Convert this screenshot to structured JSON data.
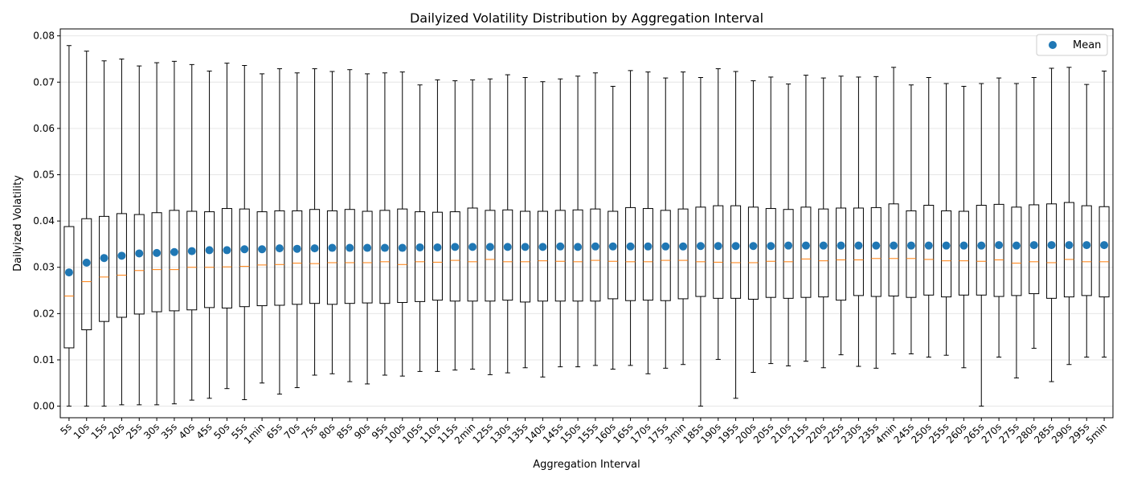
{
  "chart_data": {
    "type": "box",
    "title": "Dailyized Volatility Distribution by Aggregation Interval",
    "xlabel": "Aggregation Interval",
    "ylabel": "Dailyized Volatility",
    "ylim": [
      -0.0025,
      0.0815
    ],
    "yticks": [
      0.0,
      0.01,
      0.02,
      0.03,
      0.04,
      0.05,
      0.06,
      0.07,
      0.08
    ],
    "ytick_labels": [
      "0.00",
      "0.01",
      "0.02",
      "0.03",
      "0.04",
      "0.05",
      "0.06",
      "0.07",
      "0.08"
    ],
    "grid": "horizontal",
    "legend": {
      "placement": "top-right",
      "entries": [
        "Mean"
      ]
    },
    "colors": {
      "mean": "#1f77b4",
      "median": "#ff7f0e",
      "box": "#000000",
      "grid": "#e6e6e6"
    },
    "categories": [
      "5s",
      "10s",
      "15s",
      "20s",
      "25s",
      "30s",
      "35s",
      "40s",
      "45s",
      "50s",
      "55s",
      "1min",
      "65s",
      "70s",
      "75s",
      "80s",
      "85s",
      "90s",
      "95s",
      "100s",
      "105s",
      "110s",
      "115s",
      "2min",
      "125s",
      "130s",
      "135s",
      "140s",
      "145s",
      "150s",
      "155s",
      "160s",
      "165s",
      "170s",
      "175s",
      "3min",
      "185s",
      "190s",
      "195s",
      "200s",
      "205s",
      "210s",
      "215s",
      "220s",
      "225s",
      "230s",
      "235s",
      "4min",
      "245s",
      "250s",
      "255s",
      "260s",
      "265s",
      "270s",
      "275s",
      "280s",
      "285s",
      "290s",
      "295s",
      "5min"
    ],
    "whisker_low": [
      0.0,
      0.0,
      0.0,
      0.0003,
      0.0003,
      0.0003,
      0.0005,
      0.0013,
      0.0017,
      0.0038,
      0.0014,
      0.005,
      0.0026,
      0.004,
      0.0067,
      0.007,
      0.0053,
      0.0048,
      0.0067,
      0.0065,
      0.0075,
      0.0075,
      0.0078,
      0.008,
      0.0068,
      0.0072,
      0.0083,
      0.0063,
      0.0085,
      0.0085,
      0.0088,
      0.008,
      0.0088,
      0.007,
      0.0082,
      0.009,
      0.0,
      0.0101,
      0.0017,
      0.0073,
      0.0092,
      0.0087,
      0.0097,
      0.0083,
      0.0111,
      0.0086,
      0.0082,
      0.0113,
      0.0113,
      0.0106,
      0.011,
      0.0083,
      0.0,
      0.0106,
      0.0061,
      0.0125,
      0.0053,
      0.009,
      0.0106,
      0.0106
    ],
    "q1": [
      0.0126,
      0.0165,
      0.0183,
      0.0192,
      0.0199,
      0.0204,
      0.0206,
      0.0208,
      0.0213,
      0.0212,
      0.0215,
      0.0217,
      0.0218,
      0.022,
      0.0222,
      0.022,
      0.0222,
      0.0223,
      0.0222,
      0.0224,
      0.0226,
      0.0229,
      0.0227,
      0.0227,
      0.0227,
      0.0229,
      0.0225,
      0.0227,
      0.0227,
      0.0227,
      0.0227,
      0.0232,
      0.0228,
      0.0229,
      0.0228,
      0.0232,
      0.0237,
      0.0233,
      0.0233,
      0.0231,
      0.0235,
      0.0233,
      0.0235,
      0.0236,
      0.0229,
      0.0239,
      0.0237,
      0.0238,
      0.0235,
      0.024,
      0.0236,
      0.024,
      0.024,
      0.0237,
      0.0239,
      0.0243,
      0.0233,
      0.0236,
      0.0239,
      0.0236
    ],
    "median": [
      0.0238,
      0.0269,
      0.0279,
      0.0283,
      0.0293,
      0.0295,
      0.0295,
      0.03,
      0.03,
      0.0301,
      0.0302,
      0.0305,
      0.0306,
      0.0309,
      0.0308,
      0.031,
      0.031,
      0.031,
      0.0312,
      0.0306,
      0.0312,
      0.0311,
      0.0315,
      0.0312,
      0.0317,
      0.0312,
      0.0312,
      0.0314,
      0.0313,
      0.0312,
      0.0315,
      0.0313,
      0.0312,
      0.0312,
      0.0315,
      0.0315,
      0.0312,
      0.0311,
      0.031,
      0.031,
      0.0313,
      0.0312,
      0.0318,
      0.0314,
      0.0316,
      0.0316,
      0.0319,
      0.0319,
      0.0319,
      0.0317,
      0.0314,
      0.0314,
      0.0313,
      0.0316,
      0.0309,
      0.0312,
      0.031,
      0.0317,
      0.0312,
      0.0312
    ],
    "q3": [
      0.0388,
      0.0405,
      0.041,
      0.0416,
      0.0414,
      0.0418,
      0.0423,
      0.0421,
      0.042,
      0.0427,
      0.0426,
      0.042,
      0.0422,
      0.0422,
      0.0425,
      0.0422,
      0.0425,
      0.0421,
      0.0423,
      0.0426,
      0.042,
      0.0419,
      0.042,
      0.0428,
      0.0423,
      0.0424,
      0.0421,
      0.0421,
      0.0423,
      0.0424,
      0.0426,
      0.0421,
      0.0429,
      0.0427,
      0.0423,
      0.0426,
      0.043,
      0.0433,
      0.0433,
      0.043,
      0.0427,
      0.0425,
      0.043,
      0.0426,
      0.0428,
      0.0428,
      0.0429,
      0.0437,
      0.0422,
      0.0434,
      0.0422,
      0.0421,
      0.0434,
      0.0436,
      0.043,
      0.0435,
      0.0437,
      0.044,
      0.0433,
      0.0431
    ],
    "whisker_high": [
      0.0779,
      0.0767,
      0.0746,
      0.075,
      0.0735,
      0.0742,
      0.0745,
      0.0738,
      0.0724,
      0.0741,
      0.0736,
      0.0718,
      0.0729,
      0.072,
      0.0729,
      0.0723,
      0.0727,
      0.0718,
      0.072,
      0.0722,
      0.0694,
      0.0705,
      0.0703,
      0.0705,
      0.0707,
      0.0716,
      0.071,
      0.0701,
      0.0707,
      0.0713,
      0.072,
      0.0691,
      0.0725,
      0.0722,
      0.0709,
      0.0722,
      0.071,
      0.0729,
      0.0723,
      0.0703,
      0.0711,
      0.0696,
      0.0715,
      0.0709,
      0.0713,
      0.0711,
      0.0712,
      0.0732,
      0.0694,
      0.071,
      0.0697,
      0.0691,
      0.0697,
      0.0709,
      0.0697,
      0.071,
      0.073,
      0.0732,
      0.0695,
      0.0724
    ],
    "mean": [
      0.0289,
      0.031,
      0.032,
      0.0325,
      0.033,
      0.0331,
      0.0333,
      0.0335,
      0.0337,
      0.0337,
      0.0339,
      0.0339,
      0.0341,
      0.034,
      0.0341,
      0.0342,
      0.0342,
      0.0342,
      0.0342,
      0.0342,
      0.0343,
      0.0343,
      0.0344,
      0.0344,
      0.0344,
      0.0344,
      0.0344,
      0.0344,
      0.0345,
      0.0344,
      0.0345,
      0.0345,
      0.0345,
      0.0345,
      0.0345,
      0.0345,
      0.0346,
      0.0346,
      0.0346,
      0.0346,
      0.0346,
      0.0347,
      0.0347,
      0.0347,
      0.0347,
      0.0347,
      0.0347,
      0.0347,
      0.0347,
      0.0347,
      0.0347,
      0.0347,
      0.0347,
      0.0348,
      0.0347,
      0.0348,
      0.0348,
      0.0348,
      0.0348,
      0.0348
    ]
  }
}
